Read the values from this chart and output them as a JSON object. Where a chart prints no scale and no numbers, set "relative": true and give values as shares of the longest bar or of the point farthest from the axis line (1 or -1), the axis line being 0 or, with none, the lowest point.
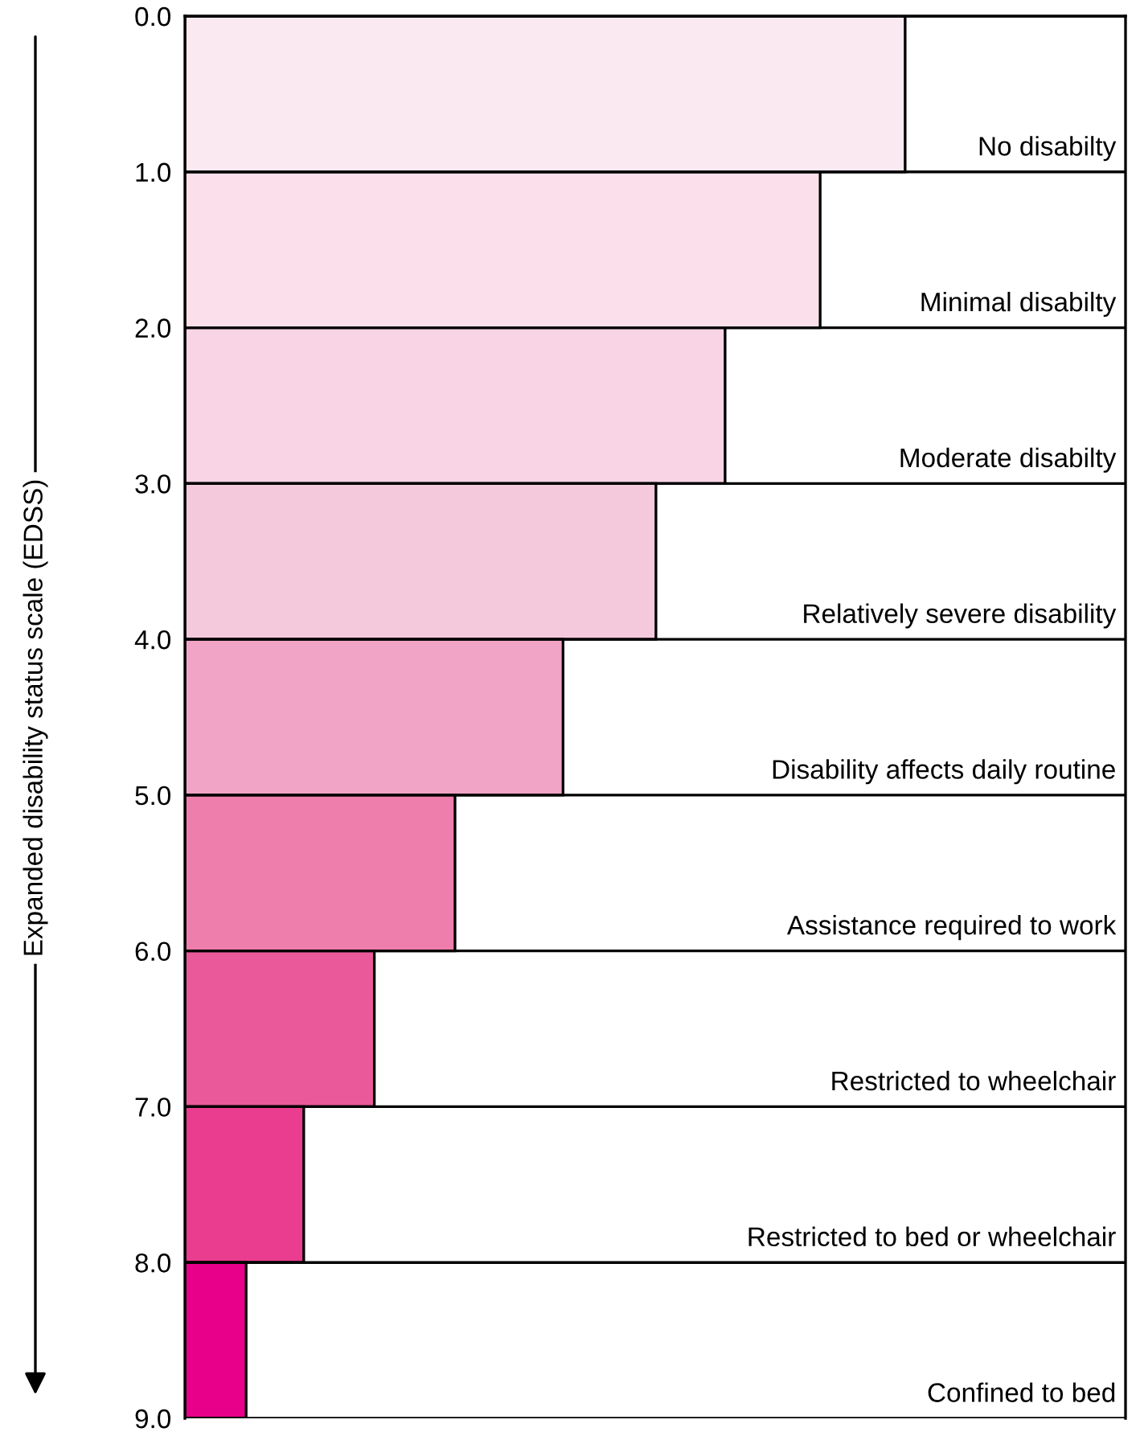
{
  "chart_data": {
    "type": "bar",
    "orientation": "horizontal",
    "relative": true,
    "x": [
      0.5,
      1.5,
      2.5,
      3.5,
      4.5,
      5.5,
      6.5,
      7.5,
      8.5
    ],
    "values": [
      1,
      0.882,
      0.75,
      0.654,
      0.525,
      0.375,
      0.263,
      0.165,
      0.085
    ],
    "colors": [
      "#fbe9f1",
      "#fbe0ec",
      "#f8d4e4",
      "#f5c9dc",
      "#f2a4c6",
      "#ee7fad",
      "#ea5a9a",
      "#ea3d8f",
      "#e8008a"
    ],
    "ylabel": "Expanded disability status scale (EDSS)",
    "ylim": [
      9,
      0
    ],
    "yticks": [
      {
        "value": 0,
        "label": "0.0"
      },
      {
        "value": 1,
        "label": "1.0"
      },
      {
        "value": 2,
        "label": "2.0"
      },
      {
        "value": 3,
        "label": "3.0"
      },
      {
        "value": 4,
        "label": "4.0"
      },
      {
        "value": 5,
        "label": "5.0"
      },
      {
        "value": 6,
        "label": "6.0"
      },
      {
        "value": 7,
        "label": "7.0"
      },
      {
        "value": 8,
        "label": "8.0"
      },
      {
        "value": 9,
        "label": "9.0"
      }
    ],
    "grid": "y",
    "annotations": [
      "No disabilty",
      "Minimal disabilty",
      "Moderate disabilty",
      "Relatively severe disability",
      "Disability affects daily routine",
      "Assistance required to work",
      "Restricted to wheelchair",
      "Restricted to bed or wheelchair",
      "Confined to bed"
    ]
  }
}
